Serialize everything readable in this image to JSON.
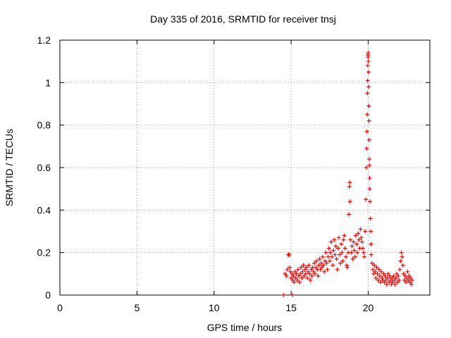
{
  "chart_data": {
    "type": "scatter",
    "title": "Day 335 of 2016, SRMTID for receiver tnsj",
    "xlabel": "GPS time / hours",
    "ylabel": "SRMTID / TECUs",
    "xlim": [
      0,
      24
    ],
    "ylim": [
      0,
      1.2
    ],
    "x_ticks": [
      0,
      5,
      10,
      15,
      20
    ],
    "x_tick_labels": [
      "0",
      "5",
      "10",
      "15",
      "20"
    ],
    "y_ticks": [
      0,
      0.2,
      0.4,
      0.6,
      0.8,
      1.0,
      1.2
    ],
    "y_tick_labels": [
      "0",
      "0.2",
      "0.4",
      "0.6",
      "0.8",
      "1",
      "1.2"
    ],
    "grid": true,
    "marker": "+",
    "series": [
      {
        "name": "SRMTID",
        "color": "#ff0000",
        "points": [
          [
            14.5,
            0.0
          ],
          [
            15.1,
            0.0
          ],
          [
            14.6,
            0.1
          ],
          [
            14.7,
            0.09
          ],
          [
            14.75,
            0.12
          ],
          [
            14.8,
            0.19
          ],
          [
            14.85,
            0.19
          ],
          [
            14.9,
            0.19
          ],
          [
            14.9,
            0.13
          ],
          [
            14.95,
            0.11
          ],
          [
            15.0,
            0.08
          ],
          [
            15.05,
            0.1
          ],
          [
            15.1,
            0.07
          ],
          [
            15.15,
            0.09
          ],
          [
            15.2,
            0.06
          ],
          [
            15.25,
            0.11
          ],
          [
            15.3,
            0.08
          ],
          [
            15.35,
            0.1
          ],
          [
            15.4,
            0.07
          ],
          [
            15.45,
            0.12
          ],
          [
            15.5,
            0.09
          ],
          [
            15.55,
            0.06
          ],
          [
            15.6,
            0.1
          ],
          [
            15.65,
            0.13
          ],
          [
            15.7,
            0.08
          ],
          [
            15.75,
            0.11
          ],
          [
            15.8,
            0.14
          ],
          [
            15.85,
            0.09
          ],
          [
            15.9,
            0.12
          ],
          [
            15.95,
            0.1
          ],
          [
            16.0,
            0.13
          ],
          [
            16.05,
            0.08
          ],
          [
            16.1,
            0.11
          ],
          [
            16.15,
            0.14
          ],
          [
            16.2,
            0.1
          ],
          [
            16.25,
            0.07
          ],
          [
            16.3,
            0.12
          ],
          [
            16.35,
            0.09
          ],
          [
            16.4,
            0.13
          ],
          [
            16.45,
            0.11
          ],
          [
            16.5,
            0.15
          ],
          [
            16.55,
            0.1
          ],
          [
            16.6,
            0.13
          ],
          [
            16.65,
            0.16
          ],
          [
            16.7,
            0.12
          ],
          [
            16.75,
            0.09
          ],
          [
            16.8,
            0.14
          ],
          [
            16.85,
            0.17
          ],
          [
            16.9,
            0.12
          ],
          [
            16.95,
            0.15
          ],
          [
            17.0,
            0.13
          ],
          [
            17.05,
            0.18
          ],
          [
            17.1,
            0.14
          ],
          [
            17.15,
            0.11
          ],
          [
            17.2,
            0.16
          ],
          [
            17.25,
            0.2
          ],
          [
            17.3,
            0.15
          ],
          [
            17.35,
            0.12
          ],
          [
            17.4,
            0.18
          ],
          [
            17.45,
            0.22
          ],
          [
            17.5,
            0.16
          ],
          [
            17.55,
            0.2
          ],
          [
            17.6,
            0.25
          ],
          [
            17.65,
            0.18
          ],
          [
            17.7,
            0.14
          ],
          [
            17.75,
            0.21
          ],
          [
            17.8,
            0.26
          ],
          [
            17.85,
            0.19
          ],
          [
            17.9,
            0.23
          ],
          [
            17.95,
            0.17
          ],
          [
            18.0,
            0.12
          ],
          [
            18.05,
            0.22
          ],
          [
            18.1,
            0.27
          ],
          [
            18.15,
            0.19
          ],
          [
            18.2,
            0.15
          ],
          [
            18.25,
            0.24
          ],
          [
            18.3,
            0.2
          ],
          [
            18.35,
            0.16
          ],
          [
            18.4,
            0.26
          ],
          [
            18.45,
            0.28
          ],
          [
            18.5,
            0.22
          ],
          [
            18.55,
            0.18
          ],
          [
            18.6,
            0.14
          ],
          [
            18.65,
            0.13
          ],
          [
            18.7,
            0.2
          ],
          [
            18.75,
            0.38
          ],
          [
            18.78,
            0.51
          ],
          [
            18.8,
            0.53
          ],
          [
            18.82,
            0.44
          ],
          [
            18.85,
            0.26
          ],
          [
            18.9,
            0.2
          ],
          [
            18.95,
            0.23
          ],
          [
            19.0,
            0.17
          ],
          [
            19.05,
            0.25
          ],
          [
            19.1,
            0.21
          ],
          [
            19.15,
            0.18
          ],
          [
            19.2,
            0.28
          ],
          [
            19.25,
            0.24
          ],
          [
            19.3,
            0.2
          ],
          [
            19.35,
            0.29
          ],
          [
            19.4,
            0.26
          ],
          [
            19.45,
            0.22
          ],
          [
            19.5,
            0.31
          ],
          [
            19.55,
            0.27
          ],
          [
            19.6,
            0.25
          ],
          [
            19.65,
            0.22
          ],
          [
            19.7,
            0.2
          ],
          [
            19.75,
            0.18
          ],
          [
            19.8,
            0.3
          ],
          [
            19.85,
            0.45
          ],
          [
            19.88,
            0.6
          ],
          [
            19.9,
            0.69
          ],
          [
            19.92,
            0.77
          ],
          [
            19.94,
            0.85
          ],
          [
            19.95,
            0.95
          ],
          [
            19.96,
            1.01
          ],
          [
            19.97,
            1.08
          ],
          [
            19.98,
            1.13
          ],
          [
            19.99,
            1.12
          ],
          [
            20.0,
            1.14
          ],
          [
            20.01,
            1.1
          ],
          [
            20.02,
            1.05
          ],
          [
            20.03,
            0.98
          ],
          [
            20.04,
            0.89
          ],
          [
            20.05,
            0.82
          ],
          [
            20.06,
            0.73
          ],
          [
            20.07,
            0.64
          ],
          [
            20.08,
            0.61
          ],
          [
            20.09,
            0.55
          ],
          [
            20.1,
            0.5
          ],
          [
            20.12,
            0.44
          ],
          [
            20.14,
            0.36
          ],
          [
            20.16,
            0.3
          ],
          [
            20.18,
            0.24
          ],
          [
            20.2,
            0.19
          ],
          [
            20.25,
            0.15
          ],
          [
            20.3,
            0.12
          ],
          [
            20.35,
            0.1
          ],
          [
            20.4,
            0.14
          ],
          [
            20.45,
            0.11
          ],
          [
            20.5,
            0.08
          ],
          [
            20.55,
            0.13
          ],
          [
            20.6,
            0.1
          ],
          [
            20.65,
            0.07
          ],
          [
            20.7,
            0.12
          ],
          [
            20.75,
            0.09
          ],
          [
            20.8,
            0.06
          ],
          [
            20.85,
            0.11
          ],
          [
            20.9,
            0.08
          ],
          [
            20.95,
            0.07
          ],
          [
            21.0,
            0.1
          ],
          [
            21.05,
            0.06
          ],
          [
            21.1,
            0.09
          ],
          [
            21.15,
            0.07
          ],
          [
            21.2,
            0.05
          ],
          [
            21.25,
            0.08
          ],
          [
            21.3,
            0.1
          ],
          [
            21.35,
            0.06
          ],
          [
            21.4,
            0.09
          ],
          [
            21.45,
            0.07
          ],
          [
            21.5,
            0.05
          ],
          [
            21.55,
            0.08
          ],
          [
            21.6,
            0.06
          ],
          [
            21.65,
            0.09
          ],
          [
            21.7,
            0.07
          ],
          [
            21.75,
            0.05
          ],
          [
            21.8,
            0.08
          ],
          [
            21.85,
            0.1
          ],
          [
            21.9,
            0.06
          ],
          [
            21.95,
            0.09
          ],
          [
            22.0,
            0.07
          ],
          [
            22.05,
            0.12
          ],
          [
            22.1,
            0.16
          ],
          [
            22.15,
            0.2
          ],
          [
            22.2,
            0.18
          ],
          [
            22.25,
            0.14
          ],
          [
            22.3,
            0.1
          ],
          [
            22.35,
            0.07
          ],
          [
            22.4,
            0.09
          ],
          [
            22.45,
            0.06
          ],
          [
            22.5,
            0.08
          ],
          [
            22.55,
            0.11
          ],
          [
            22.6,
            0.07
          ],
          [
            22.65,
            0.09
          ],
          [
            22.7,
            0.06
          ],
          [
            22.75,
            0.08
          ],
          [
            22.8,
            0.05
          ],
          [
            22.85,
            0.07
          ]
        ]
      }
    ]
  }
}
